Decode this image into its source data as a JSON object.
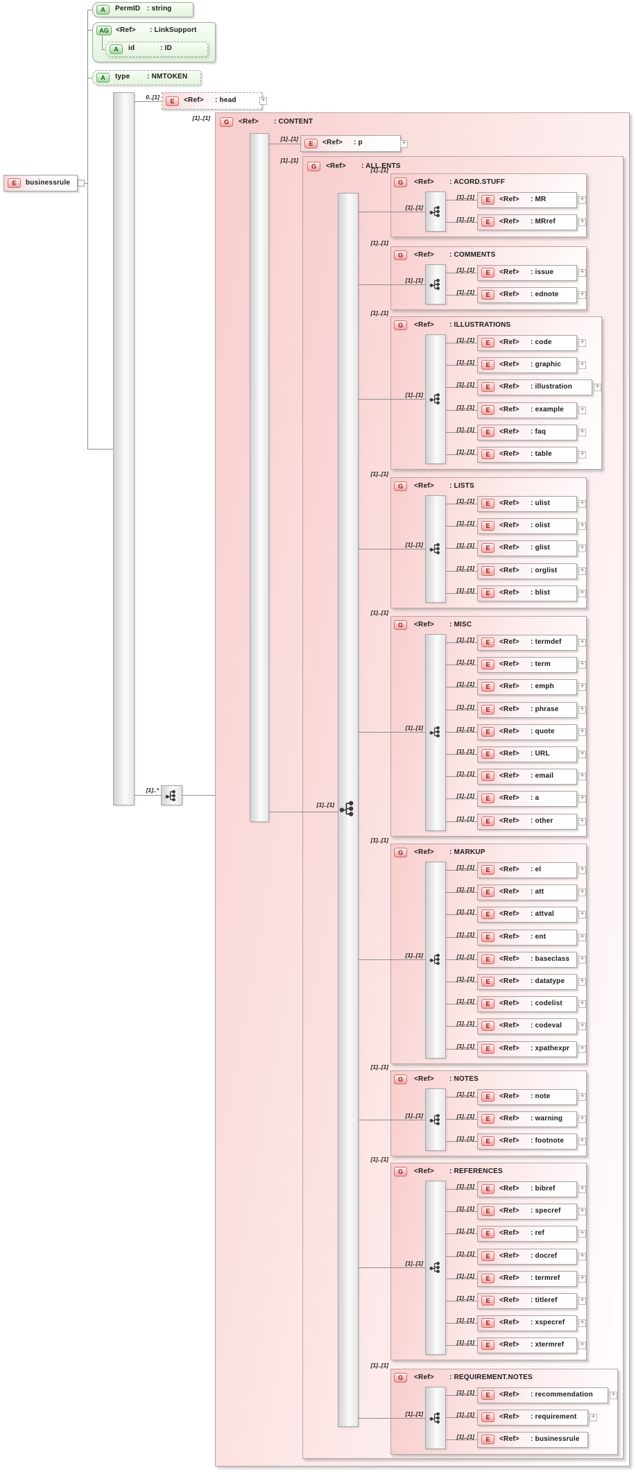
{
  "ui": {
    "expand_glyph": "+"
  },
  "diagram": {
    "root": {
      "icon": "E",
      "label": "businessrule"
    },
    "attributes": {
      "permid": {
        "icon": "A",
        "name": "PermID",
        "type": ": string"
      },
      "linksupport": {
        "icon": "AG",
        "ref": "<Ref>",
        "type": ": LinkSupport",
        "id": {
          "icon": "A",
          "name": "id",
          "type": ": ID"
        }
      },
      "type": {
        "icon": "A",
        "name": "type",
        "type": ": NMTOKEN"
      }
    },
    "head": {
      "cardinality": "0..[1]",
      "icon": "E",
      "ref": "<Ref>",
      "label": ": head"
    },
    "content": {
      "cardinality": "[1]..[1]",
      "icon": "G",
      "ref": "<Ref>",
      "label": ": CONTENT",
      "compositor_cardinality": "[1]..*",
      "p": {
        "cardinality": "[1]..[1]",
        "icon": "E",
        "ref": "<Ref>",
        "label": ": p"
      },
      "allents": {
        "cardinality": "[1]..[1]",
        "icon": "G",
        "ref": "<Ref>",
        "label": ": ALL.ENTS",
        "compositor_cardinality": "[1]..[1]",
        "groups": [
          {
            "cardinality": "[1]..[1]",
            "icon": "G",
            "ref": "<Ref>",
            "label": ": ACORD.STUFF",
            "compositor_cardinality": "[1]..[1]",
            "children": [
              {
                "cardinality": "[1]..[1]",
                "icon": "E",
                "ref": "<Ref>",
                "label": ": MR",
                "expandable": true
              },
              {
                "cardinality": "[1]..[1]",
                "icon": "E",
                "ref": "<Ref>",
                "label": ": MRref",
                "expandable": true
              }
            ]
          },
          {
            "cardinality": "[1]..[1]",
            "icon": "G",
            "ref": "<Ref>",
            "label": ": COMMENTS",
            "compositor_cardinality": "[1]..[1]",
            "children": [
              {
                "cardinality": "[1]..[1]",
                "icon": "E",
                "ref": "<Ref>",
                "label": ": issue",
                "expandable": true
              },
              {
                "cardinality": "[1]..[1]",
                "icon": "E",
                "ref": "<Ref>",
                "label": ": ednote",
                "expandable": true
              }
            ]
          },
          {
            "cardinality": "[1]..[1]",
            "icon": "G",
            "ref": "<Ref>",
            "label": ": ILLUSTRATIONS",
            "compositor_cardinality": "[1]..[1]",
            "children": [
              {
                "cardinality": "[1]..[1]",
                "icon": "E",
                "ref": "<Ref>",
                "label": ": code",
                "expandable": true
              },
              {
                "cardinality": "[1]..[1]",
                "icon": "E",
                "ref": "<Ref>",
                "label": ": graphic",
                "expandable": true
              },
              {
                "cardinality": "[1]..[1]",
                "icon": "E",
                "ref": "<Ref>",
                "label": ": illustration",
                "expandable": true
              },
              {
                "cardinality": "[1]..[1]",
                "icon": "E",
                "ref": "<Ref>",
                "label": ": example",
                "expandable": true
              },
              {
                "cardinality": "[1]..[1]",
                "icon": "E",
                "ref": "<Ref>",
                "label": ": faq",
                "expandable": true
              },
              {
                "cardinality": "[1]..[1]",
                "icon": "E",
                "ref": "<Ref>",
                "label": ": table",
                "expandable": true
              }
            ]
          },
          {
            "cardinality": "[1]..[1]",
            "icon": "G",
            "ref": "<Ref>",
            "label": ": LISTS",
            "compositor_cardinality": "[1]..[1]",
            "children": [
              {
                "cardinality": "[1]..[1]",
                "icon": "E",
                "ref": "<Ref>",
                "label": ": ulist",
                "expandable": true
              },
              {
                "cardinality": "[1]..[1]",
                "icon": "E",
                "ref": "<Ref>",
                "label": ": olist",
                "expandable": true
              },
              {
                "cardinality": "[1]..[1]",
                "icon": "E",
                "ref": "<Ref>",
                "label": ": glist",
                "expandable": true
              },
              {
                "cardinality": "[1]..[1]",
                "icon": "E",
                "ref": "<Ref>",
                "label": ": orglist",
                "expandable": true
              },
              {
                "cardinality": "[1]..[1]",
                "icon": "E",
                "ref": "<Ref>",
                "label": ": blist",
                "expandable": true
              }
            ]
          },
          {
            "cardinality": "[1]..[1]",
            "icon": "G",
            "ref": "<Ref>",
            "label": ": MISC",
            "compositor_cardinality": "[1]..[1]",
            "children": [
              {
                "cardinality": "[1]..[1]",
                "icon": "E",
                "ref": "<Ref>",
                "label": ": termdef",
                "expandable": true
              },
              {
                "cardinality": "[1]..[1]",
                "icon": "E",
                "ref": "<Ref>",
                "label": ": term",
                "expandable": true
              },
              {
                "cardinality": "[1]..[1]",
                "icon": "E",
                "ref": "<Ref>",
                "label": ": emph",
                "expandable": true
              },
              {
                "cardinality": "[1]..[1]",
                "icon": "E",
                "ref": "<Ref>",
                "label": ": phrase",
                "expandable": true
              },
              {
                "cardinality": "[1]..[1]",
                "icon": "E",
                "ref": "<Ref>",
                "label": ": quote",
                "expandable": true
              },
              {
                "cardinality": "[1]..[1]",
                "icon": "E",
                "ref": "<Ref>",
                "label": ": URL",
                "expandable": true
              },
              {
                "cardinality": "[1]..[1]",
                "icon": "E",
                "ref": "<Ref>",
                "label": ": email",
                "expandable": true
              },
              {
                "cardinality": "[1]..[1]",
                "icon": "E",
                "ref": "<Ref>",
                "label": ": a",
                "expandable": true
              },
              {
                "cardinality": "[1]..[1]",
                "icon": "E",
                "ref": "<Ref>",
                "label": ": other",
                "expandable": true
              }
            ]
          },
          {
            "cardinality": "[1]..[1]",
            "icon": "G",
            "ref": "<Ref>",
            "label": ": MARKUP",
            "compositor_cardinality": "[1]..[1]",
            "children": [
              {
                "cardinality": "[1]..[1]",
                "icon": "E",
                "ref": "<Ref>",
                "label": ": el",
                "expandable": true
              },
              {
                "cardinality": "[1]..[1]",
                "icon": "E",
                "ref": "<Ref>",
                "label": ": att",
                "expandable": true
              },
              {
                "cardinality": "[1]..[1]",
                "icon": "E",
                "ref": "<Ref>",
                "label": ": attval",
                "expandable": true
              },
              {
                "cardinality": "[1]..[1]",
                "icon": "E",
                "ref": "<Ref>",
                "label": ": ent",
                "expandable": true
              },
              {
                "cardinality": "[1]..[1]",
                "icon": "E",
                "ref": "<Ref>",
                "label": ": baseclass",
                "expandable": true
              },
              {
                "cardinality": "[1]..[1]",
                "icon": "E",
                "ref": "<Ref>",
                "label": ": datatype",
                "expandable": true
              },
              {
                "cardinality": "[1]..[1]",
                "icon": "E",
                "ref": "<Ref>",
                "label": ": codelist",
                "expandable": true
              },
              {
                "cardinality": "[1]..[1]",
                "icon": "E",
                "ref": "<Ref>",
                "label": ": codeval",
                "expandable": true
              },
              {
                "cardinality": "[1]..[1]",
                "icon": "E",
                "ref": "<Ref>",
                "label": ": xpathexpr",
                "expandable": true
              }
            ]
          },
          {
            "cardinality": "[1]..[1]",
            "icon": "G",
            "ref": "<Ref>",
            "label": ": NOTES",
            "compositor_cardinality": "[1]..[1]",
            "children": [
              {
                "cardinality": "[1]..[1]",
                "icon": "E",
                "ref": "<Ref>",
                "label": ": note",
                "expandable": true
              },
              {
                "cardinality": "[1]..[1]",
                "icon": "E",
                "ref": "<Ref>",
                "label": ": warning",
                "expandable": true
              },
              {
                "cardinality": "[1]..[1]",
                "icon": "E",
                "ref": "<Ref>",
                "label": ": footnote",
                "expandable": true
              }
            ]
          },
          {
            "cardinality": "[1]..[1]",
            "icon": "G",
            "ref": "<Ref>",
            "label": ": REFERENCES",
            "compositor_cardinality": "[1]..[1]",
            "children": [
              {
                "cardinality": "[1]..[1]",
                "icon": "E",
                "ref": "<Ref>",
                "label": ": bibref",
                "expandable": true
              },
              {
                "cardinality": "[1]..[1]",
                "icon": "E",
                "ref": "<Ref>",
                "label": ": specref",
                "expandable": true
              },
              {
                "cardinality": "[1]..[1]",
                "icon": "E",
                "ref": "<Ref>",
                "label": ": ref",
                "expandable": true
              },
              {
                "cardinality": "[1]..[1]",
                "icon": "E",
                "ref": "<Ref>",
                "label": ": docref",
                "expandable": true
              },
              {
                "cardinality": "[1]..[1]",
                "icon": "E",
                "ref": "<Ref>",
                "label": ": termref",
                "expandable": true
              },
              {
                "cardinality": "[1]..[1]",
                "icon": "E",
                "ref": "<Ref>",
                "label": ": titleref",
                "expandable": true
              },
              {
                "cardinality": "[1]..[1]",
                "icon": "E",
                "ref": "<Ref>",
                "label": ": xspecref",
                "expandable": true
              },
              {
                "cardinality": "[1]..[1]",
                "icon": "E",
                "ref": "<Ref>",
                "label": ": xtermref",
                "expandable": true
              }
            ]
          },
          {
            "cardinality": "[1]..[1]",
            "icon": "G",
            "ref": "<Ref>",
            "label": ": REQUIREMENT.NOTES",
            "compositor_cardinality": "[1]..[1]",
            "children": [
              {
                "cardinality": "[1]..[1]",
                "icon": "E",
                "ref": "<Ref>",
                "label": ": recommendation",
                "expandable": true
              },
              {
                "cardinality": "[1]..[1]",
                "icon": "E",
                "ref": "<Ref>",
                "label": ": requirement",
                "expandable": true
              },
              {
                "cardinality": "[1]..[1]",
                "icon": "E",
                "ref": "<Ref>",
                "label": ": businessrule",
                "expandable": false
              }
            ]
          }
        ]
      }
    }
  }
}
